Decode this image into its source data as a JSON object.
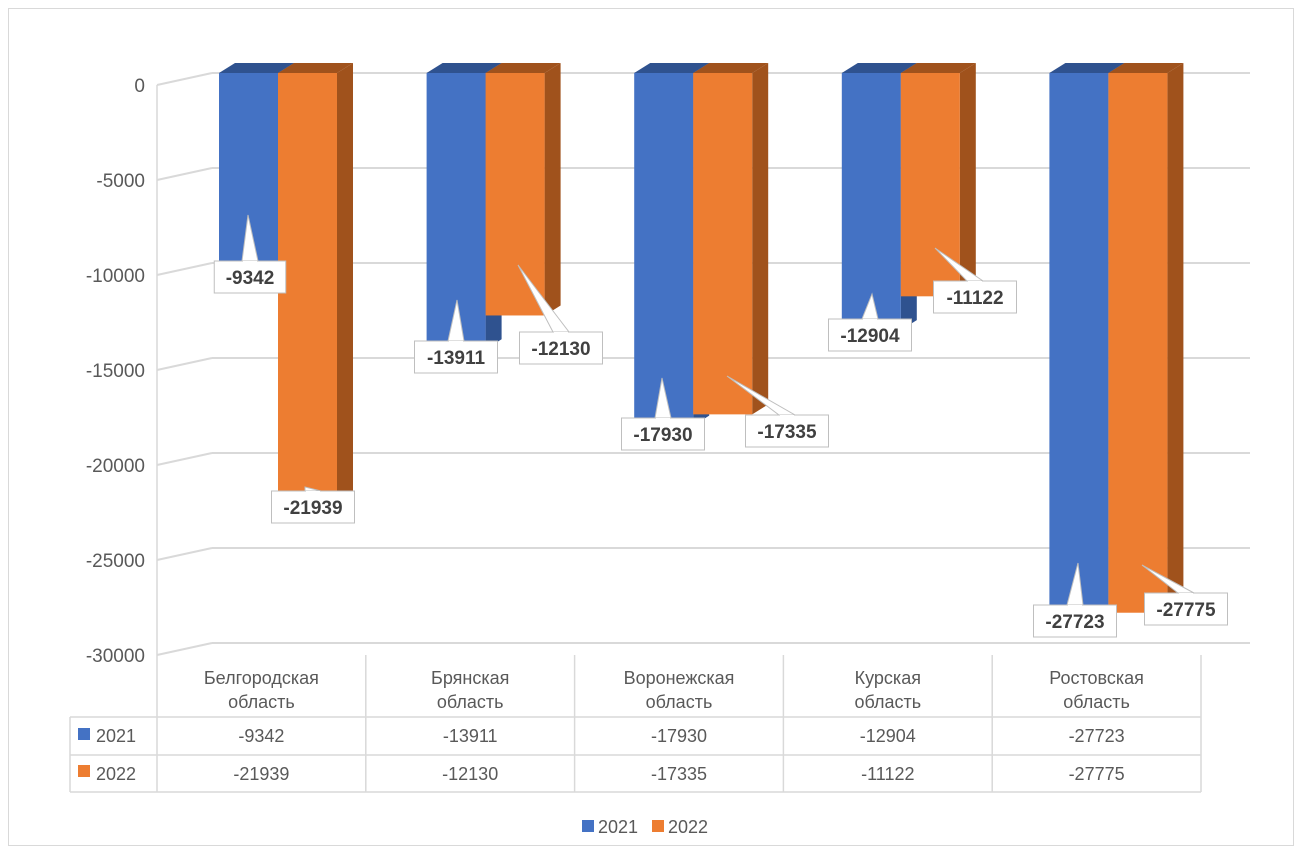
{
  "colors": {
    "series_2021": "#4472c4",
    "series_2021_side": "#2f528f",
    "series_2022": "#ed7d31",
    "series_2022_side": "#a0521c",
    "grid": "#d9d9d9",
    "text": "#595959"
  },
  "chart_data": {
    "type": "bar",
    "title": "",
    "xlabel": "",
    "ylabel": "",
    "ylim": [
      -30000,
      0
    ],
    "yticks": [
      0,
      -5000,
      -10000,
      -15000,
      -20000,
      -25000,
      -30000
    ],
    "ytick_labels": [
      "0",
      "-5000",
      "-10000",
      "-15000",
      "-20000",
      "-25000",
      "-30000"
    ],
    "categories": [
      [
        "Белгородская",
        "область"
      ],
      [
        "Брянская",
        "область"
      ],
      [
        "Воронежская",
        "область"
      ],
      [
        "Курская",
        "область"
      ],
      [
        "Ростовская",
        "область"
      ]
    ],
    "series": [
      {
        "name": "2021",
        "values": [
          -9342,
          -13911,
          -17930,
          -12904,
          -27723
        ]
      },
      {
        "name": "2022",
        "values": [
          -21939,
          -12130,
          -17335,
          -11122,
          -27775
        ]
      }
    ],
    "data_labels": [
      [
        "-9342",
        "-13911",
        "-17930",
        "-12904",
        "-27723"
      ],
      [
        "-21939",
        "-12130",
        "-17335",
        "-11122",
        "-27775"
      ]
    ],
    "table_values": [
      [
        "-9342",
        "-13911",
        "-17930",
        "-12904",
        "-27723"
      ],
      [
        "-21939",
        "-12130",
        "-17335",
        "-11122",
        "-27775"
      ]
    ],
    "legend": {
      "position": "bottom",
      "entries": [
        "2021",
        "2022"
      ]
    },
    "grid": true,
    "style": "3d-column-with-data-table"
  }
}
